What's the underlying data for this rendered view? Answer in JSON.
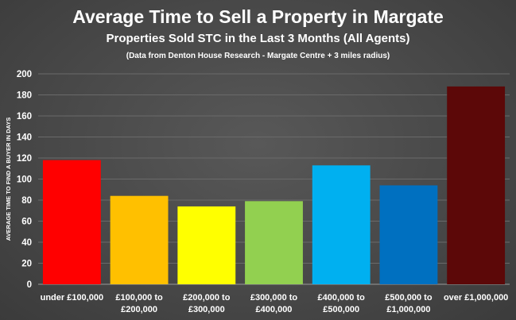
{
  "chart_data": {
    "type": "bar",
    "title": "Average Time to Sell a Property in Margate",
    "subtitle": "Properties Sold STC in the Last 3 Months (All Agents)",
    "note": "(Data from Denton House Research - Margate Centre + 3 miles radius)",
    "xlabel": "",
    "ylabel": "AVERAGE TIME TO FIND A BUYER IN DAYS",
    "ylim": [
      0,
      200
    ],
    "yticks": [
      0,
      20,
      40,
      60,
      80,
      100,
      120,
      140,
      160,
      180,
      200
    ],
    "grid": true,
    "categories": [
      [
        "under £100,000"
      ],
      [
        "£100,000 to",
        "£200,000"
      ],
      [
        "£200,000 to",
        "£300,000"
      ],
      [
        "£300,000 to",
        "£400,000"
      ],
      [
        "£400,000 to",
        "£500,000"
      ],
      [
        "£500,000 to",
        "£1,000,000"
      ],
      [
        "over £1,000,000"
      ]
    ],
    "values": [
      118,
      84,
      74,
      79,
      113,
      94,
      188
    ],
    "colors": [
      "#ff0000",
      "#ffc000",
      "#ffff00",
      "#92d050",
      "#00b0f0",
      "#0070c0",
      "#5c0808"
    ]
  }
}
